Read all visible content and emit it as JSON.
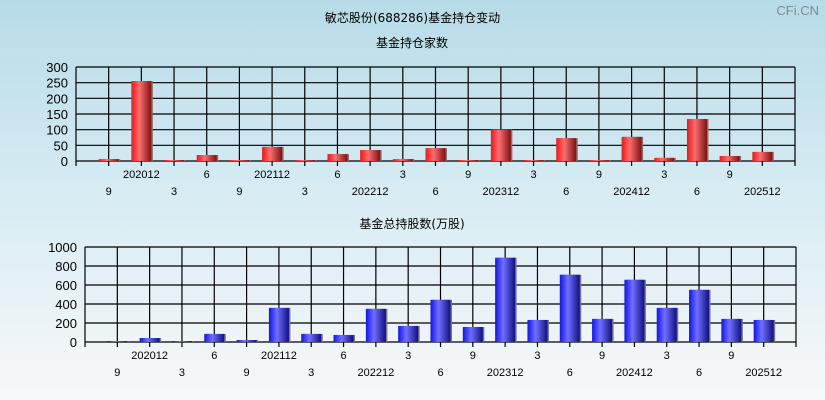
{
  "title": "敏芯股份(688286)基金持仓变动",
  "watermark": "CFi.CN",
  "chart_data": [
    {
      "type": "bar",
      "title": "基金持仓家数",
      "categories": [
        "9",
        "202012",
        "3",
        "6",
        "9",
        "202112",
        "3",
        "6",
        "202212",
        "3",
        "6",
        "9",
        "202312",
        "3",
        "6",
        "9",
        "202412",
        "3",
        "6",
        "9",
        "202512"
      ],
      "values": [
        6,
        255,
        3,
        19,
        3,
        45,
        3,
        22,
        35,
        6,
        41,
        3,
        100,
        3,
        73,
        3,
        77,
        10,
        134,
        16,
        29
      ],
      "ylim": [
        0,
        300
      ],
      "yticks": [
        0,
        50,
        100,
        150,
        200,
        250,
        300
      ],
      "grid": true,
      "color": "#ee1111"
    },
    {
      "type": "bar",
      "title": "基金总持股数(万股)",
      "categories": [
        "9",
        "202012",
        "3",
        "6",
        "9",
        "202112",
        "3",
        "6",
        "202212",
        "3",
        "6",
        "9",
        "202312",
        "3",
        "6",
        "9",
        "202412",
        "3",
        "6",
        "9",
        "202512"
      ],
      "values": [
        10,
        42,
        10,
        85,
        21,
        359,
        85,
        74,
        349,
        169,
        444,
        158,
        887,
        232,
        708,
        243,
        655,
        359,
        549,
        243,
        232
      ],
      "ylim": [
        0,
        1000
      ],
      "yticks": [
        0,
        200,
        400,
        600,
        800,
        1000
      ],
      "grid": true,
      "color": "#2222ee"
    }
  ]
}
